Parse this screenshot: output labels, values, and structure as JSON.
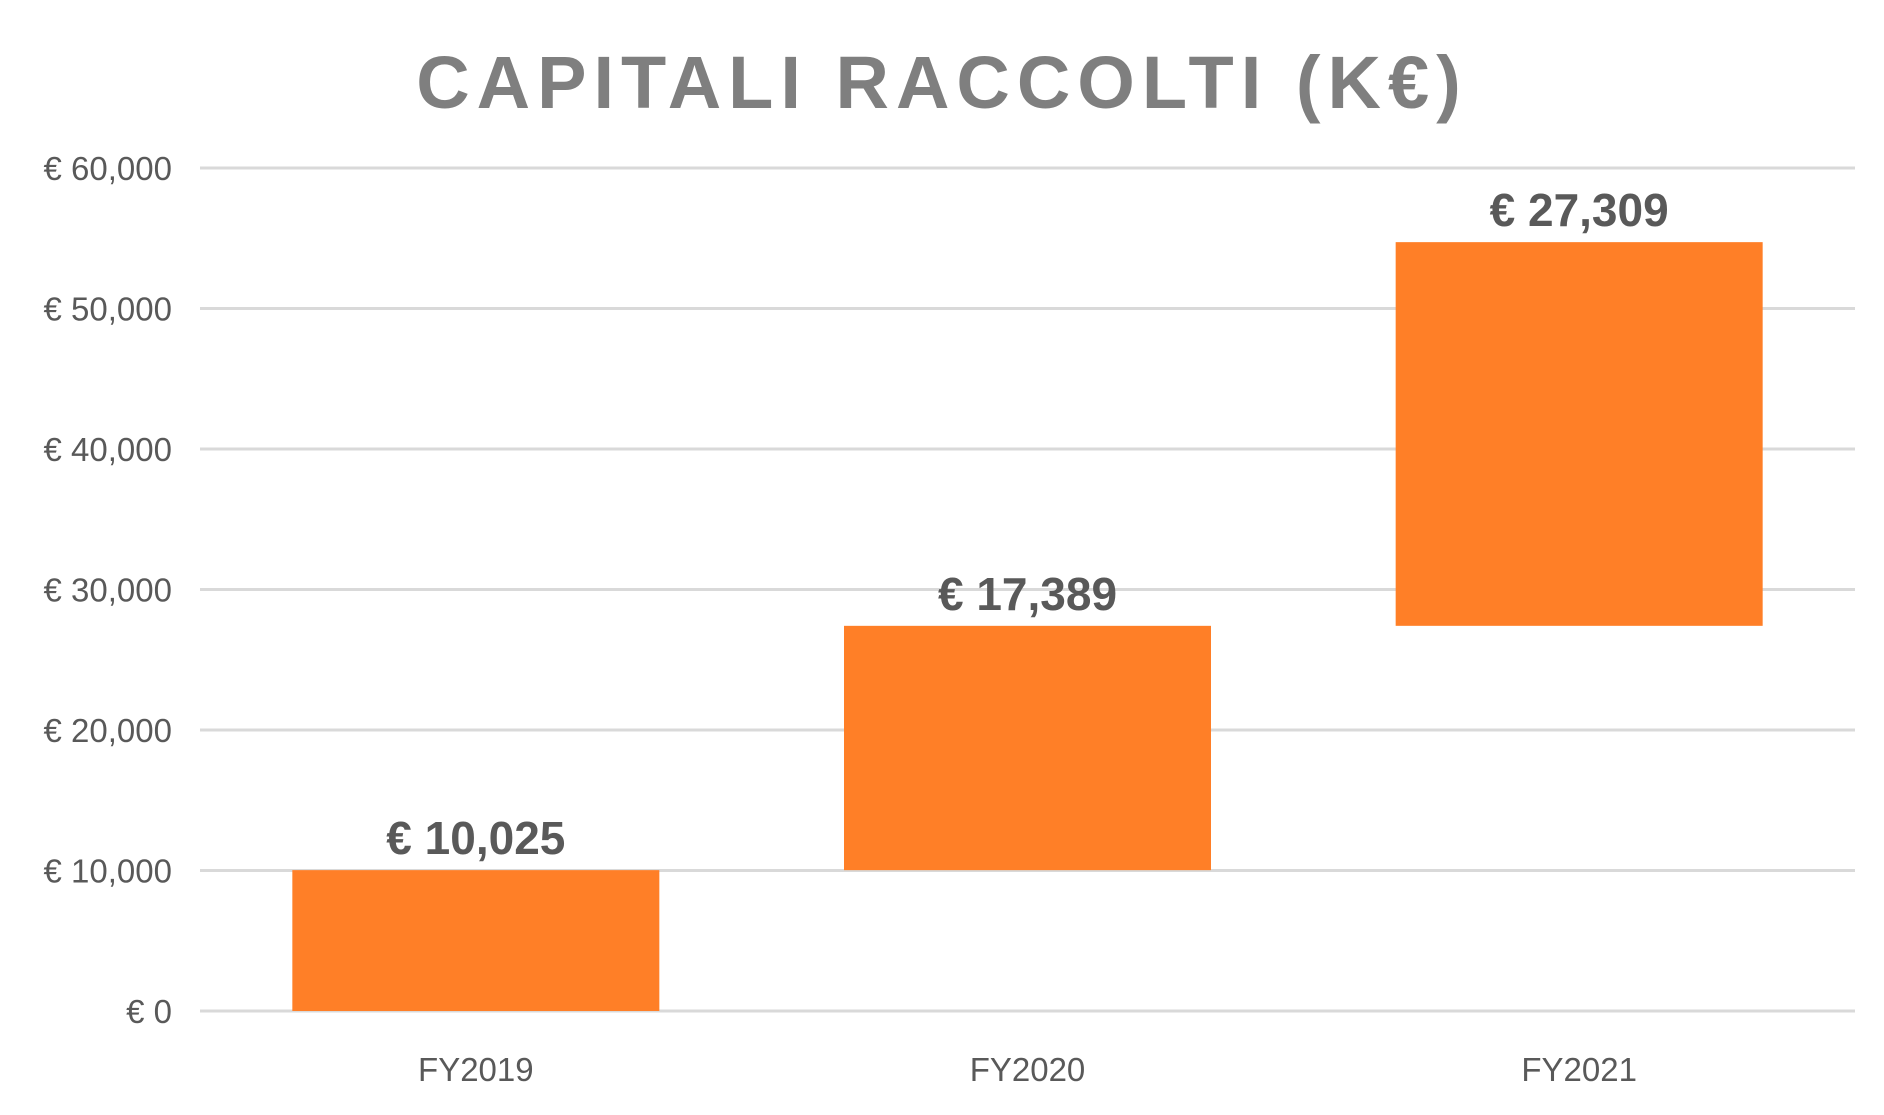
{
  "chart_data": {
    "type": "bar",
    "subtype": "waterfall",
    "title": "CAPITALI RACCOLTI (K€)",
    "xlabel": "",
    "ylabel": "",
    "categories": [
      "FY2019",
      "FY2020",
      "FY2021"
    ],
    "series": [
      {
        "values": [
          10025,
          17389,
          27309
        ],
        "bases": [
          0,
          10025,
          27414
        ],
        "labels": [
          "€ 10,025",
          "€ 17,389",
          "€ 27,309"
        ],
        "color": "#ff7f27"
      }
    ],
    "ylim": [
      0,
      60000
    ],
    "yticks": [
      0,
      10000,
      20000,
      30000,
      40000,
      50000,
      60000
    ],
    "ytick_labels": [
      "€ 0",
      "€ 10,000",
      "€ 20,000",
      "€ 30,000",
      "€ 40,000",
      "€ 50,000",
      "€ 60,000"
    ],
    "grid": true,
    "legend": "none",
    "colors": {
      "bar": "#ff7f27",
      "grid": "#d9d9d9",
      "title": "#7f7f7f",
      "text": "#595959"
    }
  }
}
